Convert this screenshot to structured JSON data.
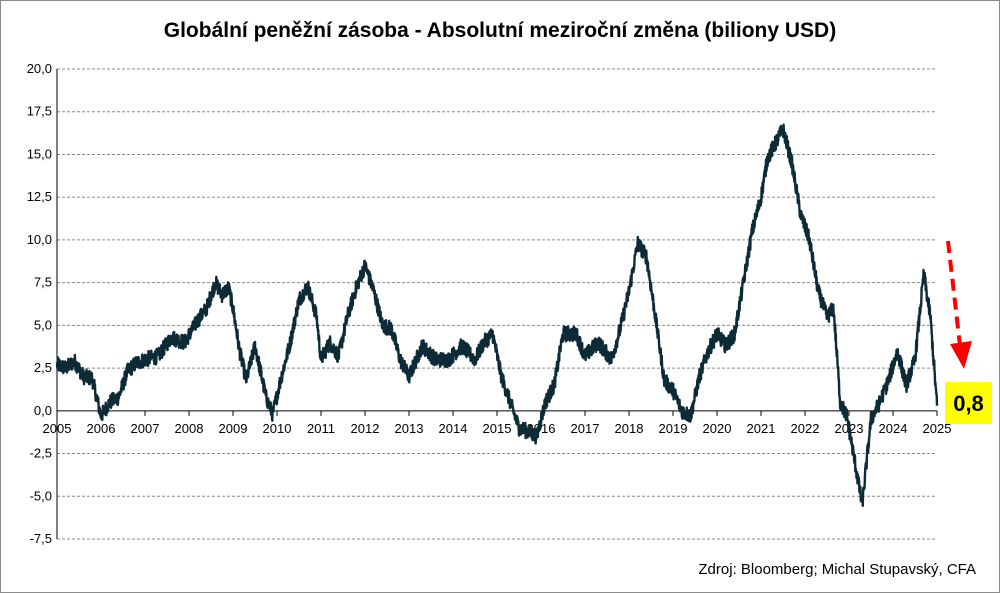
{
  "chart_data": {
    "type": "line",
    "title": "Globální peněžní zásoba - Absolutní meziroční změna (biliony USD)",
    "xlabel": "",
    "ylabel": "",
    "xlim": [
      2005,
      2025
    ],
    "ylim": [
      -7.5,
      20.0
    ],
    "y_ticks": [
      "20,0",
      "17,5",
      "15,0",
      "12,5",
      "10,0",
      "7,5",
      "5,0",
      "2,5",
      "0,0",
      "-2,5",
      "-5,0",
      "-7,5"
    ],
    "x_ticks": [
      "2005",
      "2006",
      "2007",
      "2008",
      "2009",
      "2010",
      "2011",
      "2012",
      "2013",
      "2014",
      "2015",
      "2016",
      "2017",
      "2018",
      "2019",
      "2020",
      "2021",
      "2022",
      "2023",
      "2024",
      "2025"
    ],
    "grid": true,
    "line_color": "#0d2b36",
    "series": [
      {
        "x": [
          2005.0,
          2005.2,
          2005.4,
          2005.6,
          2005.8,
          2005.9,
          2006.0,
          2006.2,
          2006.4,
          2006.6,
          2006.8,
          2007.0,
          2007.3,
          2007.6,
          2007.9,
          2008.2,
          2008.4,
          2008.6,
          2008.75,
          2008.9,
          2009.0,
          2009.15,
          2009.3,
          2009.5,
          2009.75,
          2009.9,
          2010.1,
          2010.3,
          2010.5,
          2010.7,
          2010.9,
          2011.0,
          2011.2,
          2011.4,
          2011.6,
          2011.8,
          2012.0,
          2012.2,
          2012.4,
          2012.6,
          2012.8,
          2013.0,
          2013.3,
          2013.6,
          2013.9,
          2014.2,
          2014.5,
          2014.7,
          2014.9,
          2015.1,
          2015.3,
          2015.5,
          2015.7,
          2015.9,
          2016.1,
          2016.3,
          2016.5,
          2016.8,
          2017.0,
          2017.3,
          2017.6,
          2017.8,
          2018.0,
          2018.2,
          2018.4,
          2018.6,
          2018.8,
          2019.0,
          2019.2,
          2019.4,
          2019.6,
          2019.8,
          2020.0,
          2020.2,
          2020.4,
          2020.6,
          2020.8,
          2021.0,
          2021.15,
          2021.3,
          2021.5,
          2021.7,
          2021.9,
          2022.1,
          2022.3,
          2022.5,
          2022.65,
          2022.8,
          2022.95,
          2023.1,
          2023.3,
          2023.5,
          2023.7,
          2023.9,
          2024.1,
          2024.3,
          2024.5,
          2024.7,
          2024.85,
          2025.0
        ],
        "y": [
          2.7,
          2.5,
          2.9,
          2.0,
          1.9,
          0.8,
          -0.3,
          0.5,
          0.8,
          2.3,
          2.8,
          3.0,
          3.2,
          4.3,
          4.0,
          5.3,
          6.0,
          7.5,
          6.8,
          7.2,
          6.0,
          3.5,
          1.8,
          3.8,
          0.8,
          -0.2,
          2.0,
          4.0,
          6.5,
          7.3,
          5.5,
          3.0,
          4.0,
          3.2,
          5.5,
          7.2,
          8.5,
          7.0,
          5.0,
          4.8,
          3.0,
          2.0,
          3.8,
          3.0,
          3.0,
          3.8,
          3.0,
          4.0,
          4.5,
          2.0,
          0.5,
          -1.0,
          -1.2,
          -1.5,
          0.5,
          1.5,
          4.5,
          4.5,
          3.2,
          4.0,
          3.0,
          4.8,
          7.0,
          9.8,
          9.0,
          5.5,
          1.8,
          1.2,
          0.0,
          -0.3,
          2.0,
          3.5,
          4.5,
          3.8,
          4.5,
          7.5,
          10.5,
          12.5,
          14.8,
          15.5,
          16.5,
          14.5,
          11.5,
          10.0,
          7.0,
          5.5,
          6.0,
          0.5,
          -0.3,
          -2.5,
          -5.5,
          -0.5,
          0.5,
          1.8,
          3.5,
          1.5,
          3.0,
          8.0,
          5.5,
          0.3
        ]
      }
    ],
    "annotations": [
      {
        "type": "arrow",
        "direction": "down",
        "style": "dashed",
        "color": "#ff0000"
      },
      {
        "type": "label",
        "text": "0,8",
        "background": "#ffff00"
      }
    ],
    "source": "Zdroj: Bloomberg; Michal Stupavský, CFA"
  }
}
